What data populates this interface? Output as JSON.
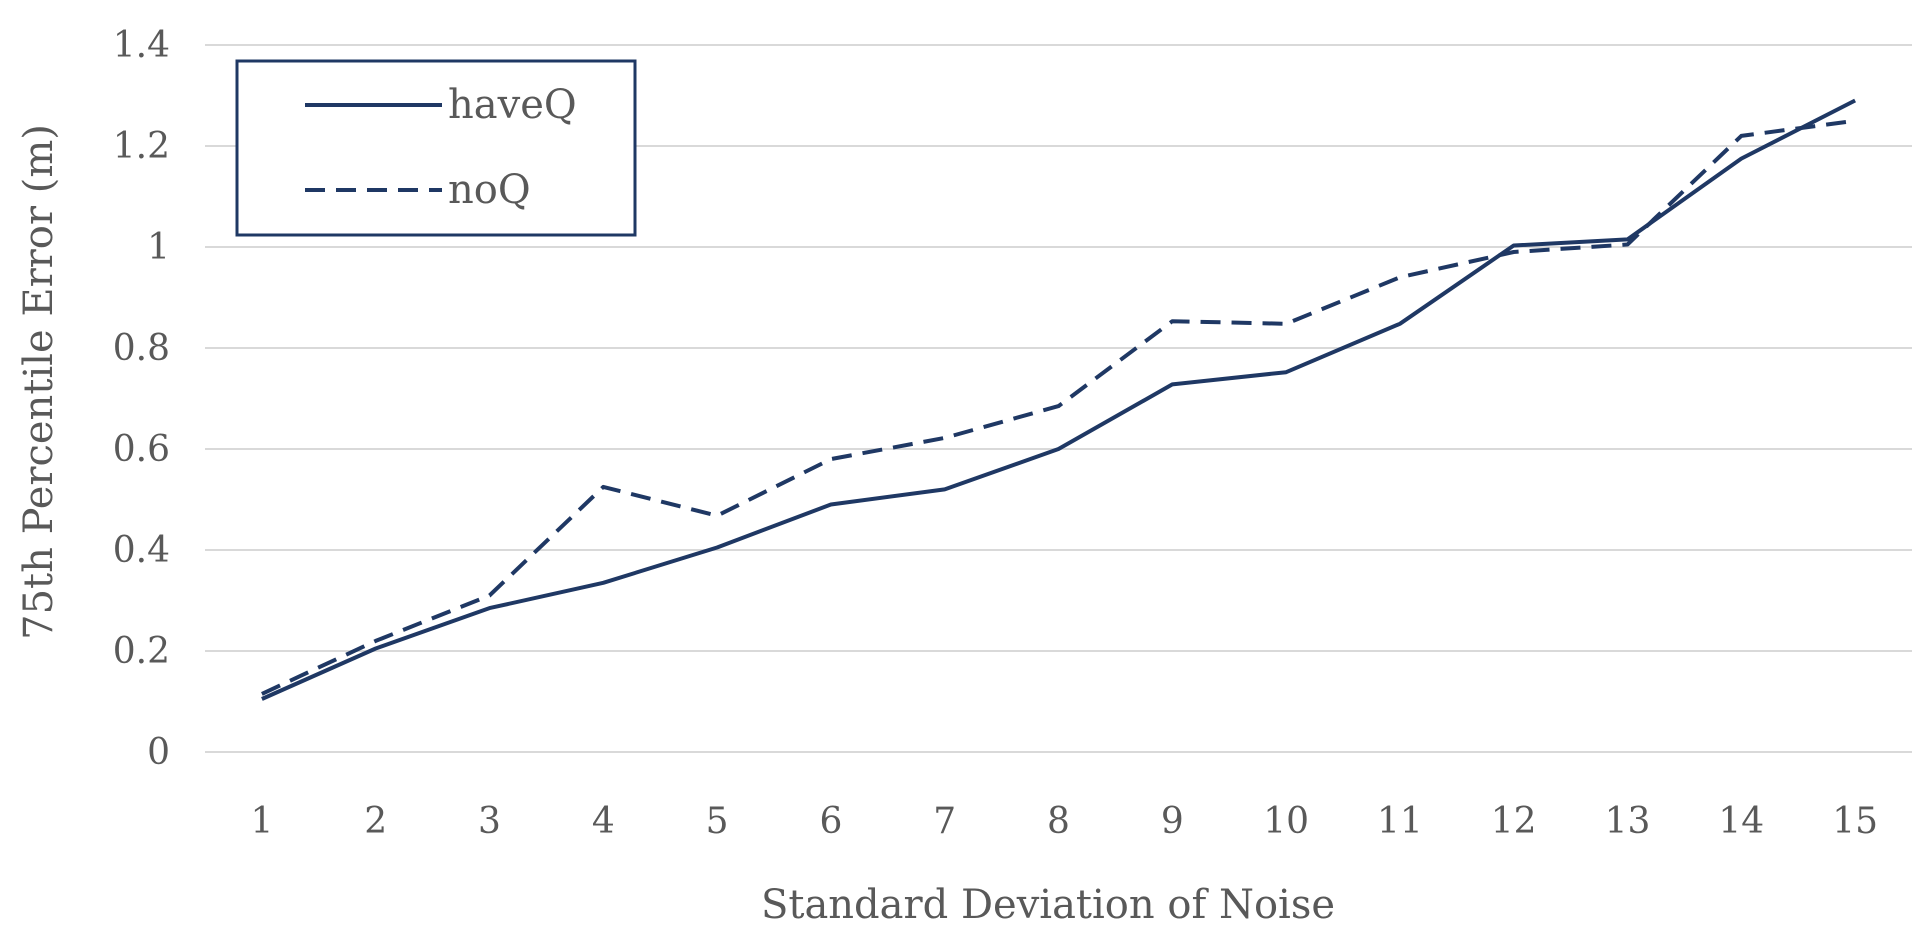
{
  "chart_data": {
    "type": "line",
    "title": "",
    "xlabel": "Standard Deviation of Noise",
    "ylabel": "75th Percentile Error (m)",
    "categories": [
      "1",
      "2",
      "3",
      "4",
      "5",
      "6",
      "7",
      "8",
      "9",
      "10",
      "11",
      "12",
      "13",
      "14",
      "15"
    ],
    "ylim": [
      0,
      1.4
    ],
    "yticks": [
      "0",
      "0.2",
      "0.4",
      "0.6",
      "0.8",
      "1",
      "1.2",
      "1.4"
    ],
    "grid": true,
    "legend_position": "top-left",
    "series": [
      {
        "name": "haveQ",
        "style": "solid",
        "color": "#1f3864",
        "values": [
          0.105,
          0.205,
          0.285,
          0.335,
          0.405,
          0.49,
          0.52,
          0.6,
          0.728,
          0.752,
          0.848,
          1.003,
          1.015,
          1.175,
          1.29
        ]
      },
      {
        "name": "noQ",
        "style": "dashed",
        "color": "#1f3864",
        "values": [
          0.115,
          0.22,
          0.31,
          0.525,
          0.468,
          0.58,
          0.622,
          0.685,
          0.853,
          0.848,
          0.94,
          0.99,
          1.005,
          1.22,
          1.25
        ]
      }
    ]
  }
}
